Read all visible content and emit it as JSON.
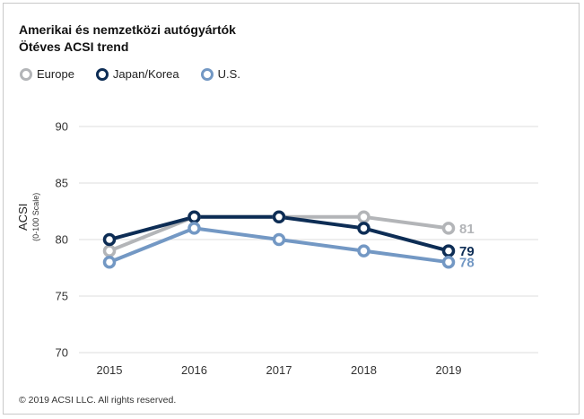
{
  "header": {
    "title": "Amerikai és nemzetközi autógyártók",
    "subtitle": "Ötéves ACSI trend"
  },
  "legend": [
    {
      "name": "Europe",
      "color": "#b3b5b8"
    },
    {
      "name": "Japan/Korea",
      "color": "#0d2d55"
    },
    {
      "name": "U.S.",
      "color": "#7398c4"
    }
  ],
  "chart_data": {
    "type": "line",
    "title": "Amerikai és nemzetközi autógyártók – Ötéves ACSI trend",
    "xlabel": "",
    "ylabel": "ACSI",
    "ylabel_sub": "(0-100 Scale)",
    "x": [
      "2015",
      "2016",
      "2017",
      "2018",
      "2019"
    ],
    "ylim": [
      70,
      90
    ],
    "yticks": [
      70,
      75,
      80,
      85,
      90
    ],
    "grid": true,
    "legend_position": "top-left",
    "series": [
      {
        "name": "Europe",
        "color": "#b3b5b8",
        "values": [
          79,
          82,
          82,
          82,
          81
        ],
        "end_label": "81"
      },
      {
        "name": "Japan/Korea",
        "color": "#0d2d55",
        "values": [
          80,
          82,
          82,
          81,
          79
        ],
        "end_label": "79"
      },
      {
        "name": "U.S.",
        "color": "#7398c4",
        "values": [
          78,
          81,
          80,
          79,
          78
        ],
        "end_label": "78"
      }
    ]
  },
  "footer": {
    "copyright": "© 2019 ACSI LLC. All rights reserved."
  }
}
